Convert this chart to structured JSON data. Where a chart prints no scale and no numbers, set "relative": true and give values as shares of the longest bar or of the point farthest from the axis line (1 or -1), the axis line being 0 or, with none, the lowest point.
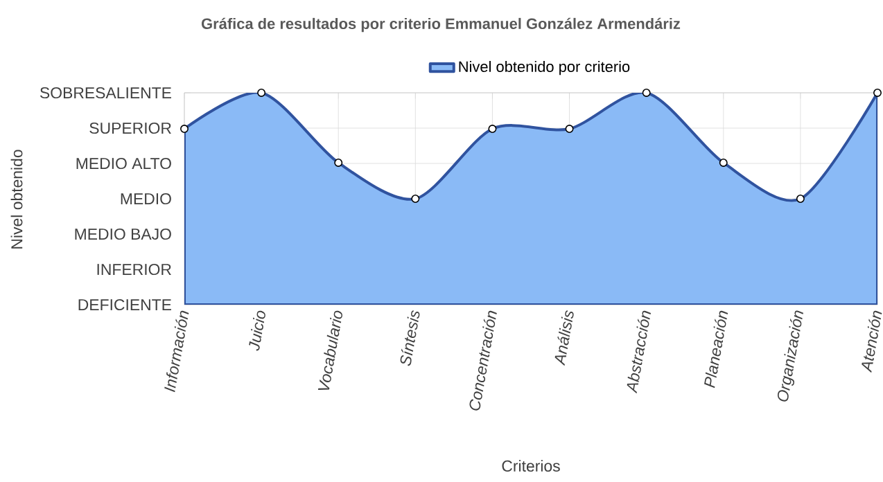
{
  "chart_data": {
    "type": "area",
    "title": "Gráfica de resultados por criterio Emmanuel González Armendáriz",
    "xlabel": "Criterios",
    "categories": [
      "Información",
      "Juicio",
      "Vocabulario",
      "Síntesis",
      "Concentración",
      "Análisis",
      "Abstracción",
      "Planeación",
      "Organización",
      "Atención"
    ],
    "series": [
      {
        "name": "Nivel obtenido por criterio",
        "color": "#8abaf6",
        "values": [
          0.83,
          1,
          0.67,
          0.5,
          0.83,
          0.83,
          1,
          0.67,
          0.5,
          1
        ]
      }
    ],
    "relative": true,
    "annotations": [
      "DEFICIENTE",
      "INFERIOR",
      "MEDIO BAJO",
      "MEDIO",
      "MEDIO ALTO",
      "SUPERIOR",
      "SOBRESALIENTE",
      "Nivel obtenido"
    ],
    "grid": true,
    "legend": "top",
    "marker": "circle",
    "line_style": "solid"
  }
}
